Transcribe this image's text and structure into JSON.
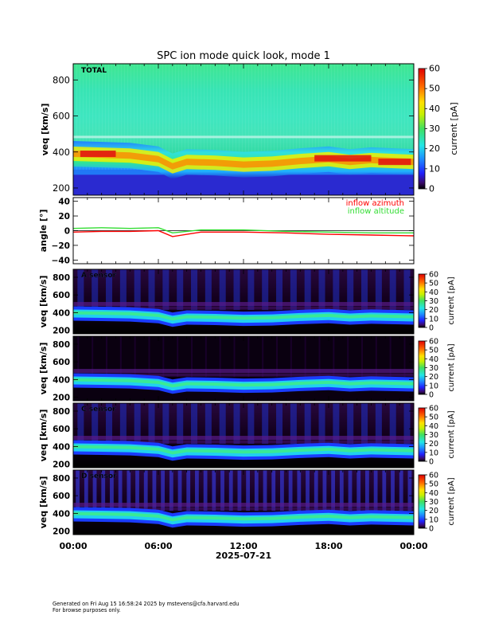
{
  "title": "SPC ion mode quick look, mode 1",
  "x_ticks": [
    "00:00",
    "06:00",
    "12:00",
    "18:00",
    "00:00"
  ],
  "date_label": "2025-07-21",
  "colorbar": {
    "label": "current [pA]",
    "ticks_big": [
      "0",
      "10",
      "20",
      "30",
      "40",
      "50",
      "60"
    ],
    "ticks_small": [
      "0",
      "10",
      "20",
      "30",
      "40",
      "50",
      "60"
    ]
  },
  "colors": {
    "background": "#000000",
    "low": "#1a1ad9",
    "mid": "#22e6c0",
    "high": "#ff2020",
    "azimuth": "#ff0000",
    "altitude": "#33dd33"
  },
  "footer": {
    "line1": "Generated on Fri Aug 15 16:58:24 2025 by mstevens@cfa.harvard.edu",
    "line2": "For browse purposes only."
  },
  "chart_data": [
    {
      "type": "heatmap",
      "label": "TOTAL",
      "ylabel": "v_eq [km/s]",
      "ylim": [
        160,
        890
      ],
      "yticks": [
        "200",
        "400",
        "600",
        "800"
      ],
      "x": [
        "00:00",
        "02:00",
        "04:00",
        "06:00",
        "07:00",
        "08:00",
        "10:00",
        "12:00",
        "14:00",
        "16:00",
        "18:00",
        "19:30",
        "21:00",
        "24:00"
      ],
      "peak_speed": [
        390,
        385,
        380,
        360,
        320,
        345,
        340,
        330,
        335,
        350,
        360,
        345,
        355,
        345
      ],
      "zlim": [
        0,
        60
      ]
    },
    {
      "type": "line",
      "ylabel": "angle [°]",
      "ylim": [
        -45,
        45
      ],
      "yticks": [
        "40",
        "20",
        "0",
        "−20",
        "−40"
      ],
      "x": [
        "00:00",
        "02:00",
        "04:00",
        "06:00",
        "07:00",
        "09:00",
        "12:00",
        "15:00",
        "18:00",
        "21:00",
        "24:00"
      ],
      "series": [
        {
          "name": "inflow azimuth",
          "values": [
            -2,
            -1,
            -1,
            0,
            -8,
            -2,
            -2,
            -3,
            -5,
            -6,
            -7
          ]
        },
        {
          "name": "inflow altitude",
          "values": [
            3,
            4,
            3,
            4,
            -3,
            1,
            1,
            -1,
            -2,
            -3,
            -3
          ]
        }
      ]
    },
    {
      "type": "heatmap",
      "label": "A sensor",
      "ylabel": "v_eq [km/s]",
      "ylim": [
        160,
        890
      ],
      "yticks": [
        "200",
        "400",
        "600",
        "800"
      ],
      "zlim": [
        0,
        60
      ]
    },
    {
      "type": "heatmap",
      "label": "",
      "ylabel": "v_eq [km/s]",
      "ylim": [
        160,
        890
      ],
      "yticks": [
        "200",
        "400",
        "600",
        "800"
      ],
      "zlim": [
        0,
        60
      ]
    },
    {
      "type": "heatmap",
      "label": "C sensor",
      "ylabel": "v_eq [km/s]",
      "ylim": [
        160,
        890
      ],
      "yticks": [
        "200",
        "400",
        "600",
        "800"
      ],
      "zlim": [
        0,
        60
      ]
    },
    {
      "type": "heatmap",
      "label": "D sensor",
      "ylabel": "v_eq [km/s]",
      "ylim": [
        160,
        890
      ],
      "yticks": [
        "200",
        "400",
        "600",
        "800"
      ],
      "zlim": [
        0,
        60
      ]
    }
  ]
}
